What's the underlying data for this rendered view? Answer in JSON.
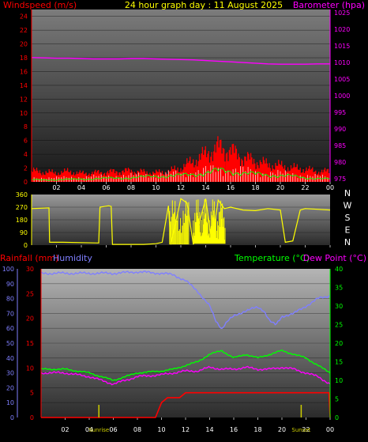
{
  "colors": {
    "wind": "#ff0000",
    "gust": "#ffffff",
    "wind_avg": "#00ff00",
    "barometer": "#ff00ff",
    "direction": "#ffff00",
    "rain": "#ff0000",
    "humidity": "#7f7fff",
    "temperature": "#00ff00",
    "dew_point": "#ff00ff",
    "title": "#ffff00",
    "sun_marker": "#cccc00"
  },
  "chart_data": [
    {
      "type": "line",
      "title": "24 hour graph day : 11 August 2025",
      "left_label": "Windspeed (m/s)",
      "right_label": "Barometer (hpa)",
      "y_left_ticks": [
        "0",
        "2",
        "4",
        "6",
        "8",
        "10",
        "12",
        "14",
        "16",
        "18",
        "20",
        "22",
        "24"
      ],
      "y_right_ticks": [
        "975",
        "980",
        "985",
        "990",
        "995",
        "1000",
        "1005",
        "1010",
        "1015",
        "1020",
        "1025"
      ],
      "x_ticks": [
        "02",
        "04",
        "06",
        "08",
        "10",
        "12",
        "14",
        "16",
        "18",
        "20",
        "22",
        "00"
      ],
      "ylim_left": [
        0,
        25
      ],
      "ylim_right": [
        974,
        1026
      ],
      "xlim": [
        0,
        24
      ],
      "series": [
        {
          "role": "barometer",
          "axis": "right",
          "x": [
            0,
            1,
            2,
            3,
            4,
            5,
            6,
            7,
            8,
            9,
            10,
            11,
            12,
            13,
            14,
            15,
            16,
            17,
            18,
            19,
            20,
            21,
            22,
            23,
            24
          ],
          "y": [
            1011.5,
            1011.4,
            1011.3,
            1011.3,
            1011.2,
            1011.1,
            1011.1,
            1011.1,
            1011.2,
            1011.2,
            1011.1,
            1011.0,
            1010.9,
            1010.8,
            1010.6,
            1010.4,
            1010.2,
            1010.0,
            1009.8,
            1009.6,
            1009.5,
            1009.5,
            1009.5,
            1009.6,
            1009.6
          ]
        },
        {
          "role": "gust",
          "axis": "left",
          "x": [
            0,
            1,
            2,
            3,
            4,
            5,
            6,
            7,
            8,
            9,
            10,
            11,
            12,
            13,
            14,
            15,
            16,
            17,
            18,
            19,
            20,
            21,
            22,
            23,
            24
          ],
          "y": [
            1.6,
            1.4,
            1.3,
            1.5,
            1.2,
            1.3,
            1.4,
            1.5,
            1.6,
            1.4,
            1.3,
            1.5,
            2.0,
            3.0,
            4.0,
            5.0,
            4.5,
            3.5,
            3.0,
            2.5,
            2.3,
            2.0,
            1.8,
            1.5,
            1.5
          ]
        },
        {
          "role": "wind_avg",
          "axis": "left",
          "x": [
            0,
            2,
            4,
            6,
            8,
            10,
            12,
            13,
            14,
            15,
            16,
            17,
            18,
            19,
            20,
            21,
            22,
            23,
            24
          ],
          "y": [
            0.3,
            0.3,
            0.4,
            0.5,
            0.6,
            0.8,
            0.9,
            1.1,
            1.3,
            1.6,
            1.5,
            1.3,
            1.1,
            1.0,
            0.9,
            0.8,
            0.6,
            0.5,
            0.4
          ]
        }
      ]
    },
    {
      "type": "scatter",
      "left_ticks": [
        "360",
        "270",
        "180",
        "90",
        "0"
      ],
      "right_labels": [
        "N",
        "W",
        "S",
        "E",
        "N"
      ],
      "x_ticks": [
        "02",
        "04",
        "06",
        "08",
        "10",
        "12",
        "14",
        "16",
        "18",
        "20",
        "22",
        "00"
      ],
      "ylim": [
        0,
        360
      ],
      "xlim": [
        0,
        24
      ],
      "series": [
        {
          "role": "direction",
          "x": [
            0,
            1.4,
            1.45,
            2.5,
            5.4,
            5.5,
            6.2,
            6.4,
            6.5,
            9.0,
            10.0,
            10.5,
            11.0,
            11.2,
            12.0,
            12.5,
            13.0,
            14.0,
            14.5,
            15.0,
            15.5,
            16.0,
            17.0,
            18.0,
            19.0,
            20.0,
            20.4,
            21.0,
            21.6,
            22.0,
            23.0,
            24.0
          ],
          "y": [
            260,
            265,
            20,
            20,
            15,
            270,
            280,
            275,
            5,
            5,
            10,
            20,
            280,
            5,
            330,
            300,
            5,
            330,
            20,
            320,
            260,
            270,
            250,
            245,
            260,
            250,
            20,
            30,
            250,
            260,
            255,
            250
          ]
        }
      ]
    },
    {
      "type": "line",
      "left_label_rain": "Rainfall (mm)",
      "left_label_humidity": "Humidity",
      "right_label_temp": "Temperature (°C)",
      "right_label_dew": "Dew Point (°C)",
      "y_humidity_ticks": [
        "0",
        "10",
        "20",
        "30",
        "40",
        "50",
        "60",
        "70",
        "80",
        "90",
        "100"
      ],
      "y_rain_ticks": [
        "0",
        "5",
        "10",
        "15",
        "20",
        "25",
        "30"
      ],
      "y_temp_ticks": [
        "0",
        "5",
        "10",
        "15",
        "20",
        "25",
        "30",
        "35",
        "40"
      ],
      "x_ticks": [
        "02",
        "04",
        "06",
        "08",
        "10",
        "12",
        "14",
        "16",
        "18",
        "20",
        "22",
        "00"
      ],
      "sunrise_label": "Sunrise",
      "sunset_label": "Sunset",
      "ylim_rain": [
        0,
        30
      ],
      "ylim_humidity": [
        0,
        100
      ],
      "ylim_temp": [
        0,
        40
      ],
      "xlim": [
        0,
        24
      ],
      "series": [
        {
          "role": "humidity",
          "axis": "humidity",
          "x": [
            0,
            2,
            4,
            6,
            8,
            10,
            11,
            12,
            13,
            14,
            14.5,
            15,
            15.5,
            16,
            17,
            18,
            18.5,
            19,
            19.5,
            20,
            21,
            22,
            23,
            24
          ],
          "y": [
            97,
            97,
            97,
            97,
            98,
            97,
            96,
            92,
            85,
            75,
            65,
            60,
            65,
            68,
            72,
            74,
            72,
            65,
            62,
            68,
            70,
            75,
            80,
            82
          ]
        },
        {
          "role": "temperature",
          "axis": "temp",
          "x": [
            0,
            2,
            4,
            6,
            7,
            8,
            10,
            11,
            12,
            13,
            14,
            15,
            16,
            17,
            18,
            19,
            20,
            21,
            22,
            23,
            24
          ],
          "y": [
            13,
            13,
            12,
            10,
            11,
            12,
            12.5,
            13,
            14,
            15,
            17,
            18,
            16,
            17,
            16,
            17,
            18,
            17,
            16,
            14,
            12
          ]
        },
        {
          "role": "dew_point",
          "axis": "temp",
          "x": [
            0,
            2,
            4,
            6,
            7,
            8,
            10,
            11,
            12,
            13,
            14,
            15,
            16,
            17,
            18,
            19,
            20,
            21,
            22,
            23,
            24
          ],
          "y": [
            12,
            12,
            11,
            9,
            10,
            11,
            11.5,
            12,
            12.5,
            12.5,
            13.5,
            13,
            13,
            13.5,
            13,
            13,
            13.5,
            13,
            12,
            11,
            9
          ]
        },
        {
          "role": "rain",
          "axis": "rain",
          "x": [
            0,
            2,
            4,
            6,
            8,
            9.5,
            10,
            10.5,
            11,
            11.5,
            12,
            14,
            16,
            18,
            20,
            22,
            23.9,
            24
          ],
          "y": [
            0,
            0,
            0,
            0,
            0,
            0,
            3,
            4,
            4,
            4,
            5,
            5,
            5,
            5,
            5,
            5,
            5,
            0
          ]
        }
      ],
      "sunrise_hour": 4.8,
      "sunset_hour": 21.6
    }
  ]
}
